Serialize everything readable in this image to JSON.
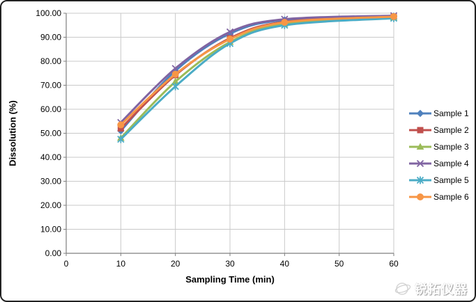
{
  "watermark": {
    "logo": "globe-icon",
    "text": "锐拓仪器"
  },
  "chart_data": {
    "type": "line",
    "title": "",
    "xlabel": "Sampling Time (min)",
    "ylabel": "Dissolution (%)",
    "xlim": [
      0,
      60
    ],
    "ylim": [
      0,
      100
    ],
    "xticks": [
      0,
      10,
      20,
      30,
      40,
      50,
      60
    ],
    "xtick_labels": [
      "0",
      "10",
      "20",
      "30",
      "40",
      "50",
      "60"
    ],
    "yticks": [
      0,
      10,
      20,
      30,
      40,
      50,
      60,
      70,
      80,
      90,
      100
    ],
    "ytick_labels": [
      "0.00",
      "10.00",
      "20.00",
      "30.00",
      "40.00",
      "50.00",
      "60.00",
      "70.00",
      "80.00",
      "90.00",
      "100.00"
    ],
    "grid": true,
    "smooth": true,
    "legend_position": "right",
    "x": [
      10,
      20,
      30,
      40,
      60
    ],
    "series": [
      {
        "name": "Sample 1",
        "color": "#4F81BD",
        "marker": "diamond",
        "values": [
          51.0,
          76.0,
          91.5,
          97.2,
          98.8
        ]
      },
      {
        "name": "Sample 2",
        "color": "#C0504D",
        "marker": "square",
        "values": [
          52.0,
          74.2,
          89.6,
          96.4,
          98.5
        ]
      },
      {
        "name": "Sample 3",
        "color": "#9BBB59",
        "marker": "triangle",
        "values": [
          48.0,
          71.5,
          88.0,
          95.5,
          98.2
        ]
      },
      {
        "name": "Sample 4",
        "color": "#8064A2",
        "marker": "x",
        "values": [
          54.5,
          77.0,
          92.2,
          97.5,
          99.0
        ]
      },
      {
        "name": "Sample 5",
        "color": "#4BACC6",
        "marker": "asterisk",
        "values": [
          47.5,
          69.5,
          87.4,
          95.0,
          97.9
        ]
      },
      {
        "name": "Sample 6",
        "color": "#F79646",
        "marker": "circle",
        "values": [
          53.5,
          74.6,
          89.2,
          96.2,
          98.6
        ]
      }
    ],
    "colors": {
      "gridline": "#C9C9C9",
      "axis_line": "#7F7F7F",
      "tick_label": "#000000",
      "plot_background": "#FFFFFF"
    }
  }
}
